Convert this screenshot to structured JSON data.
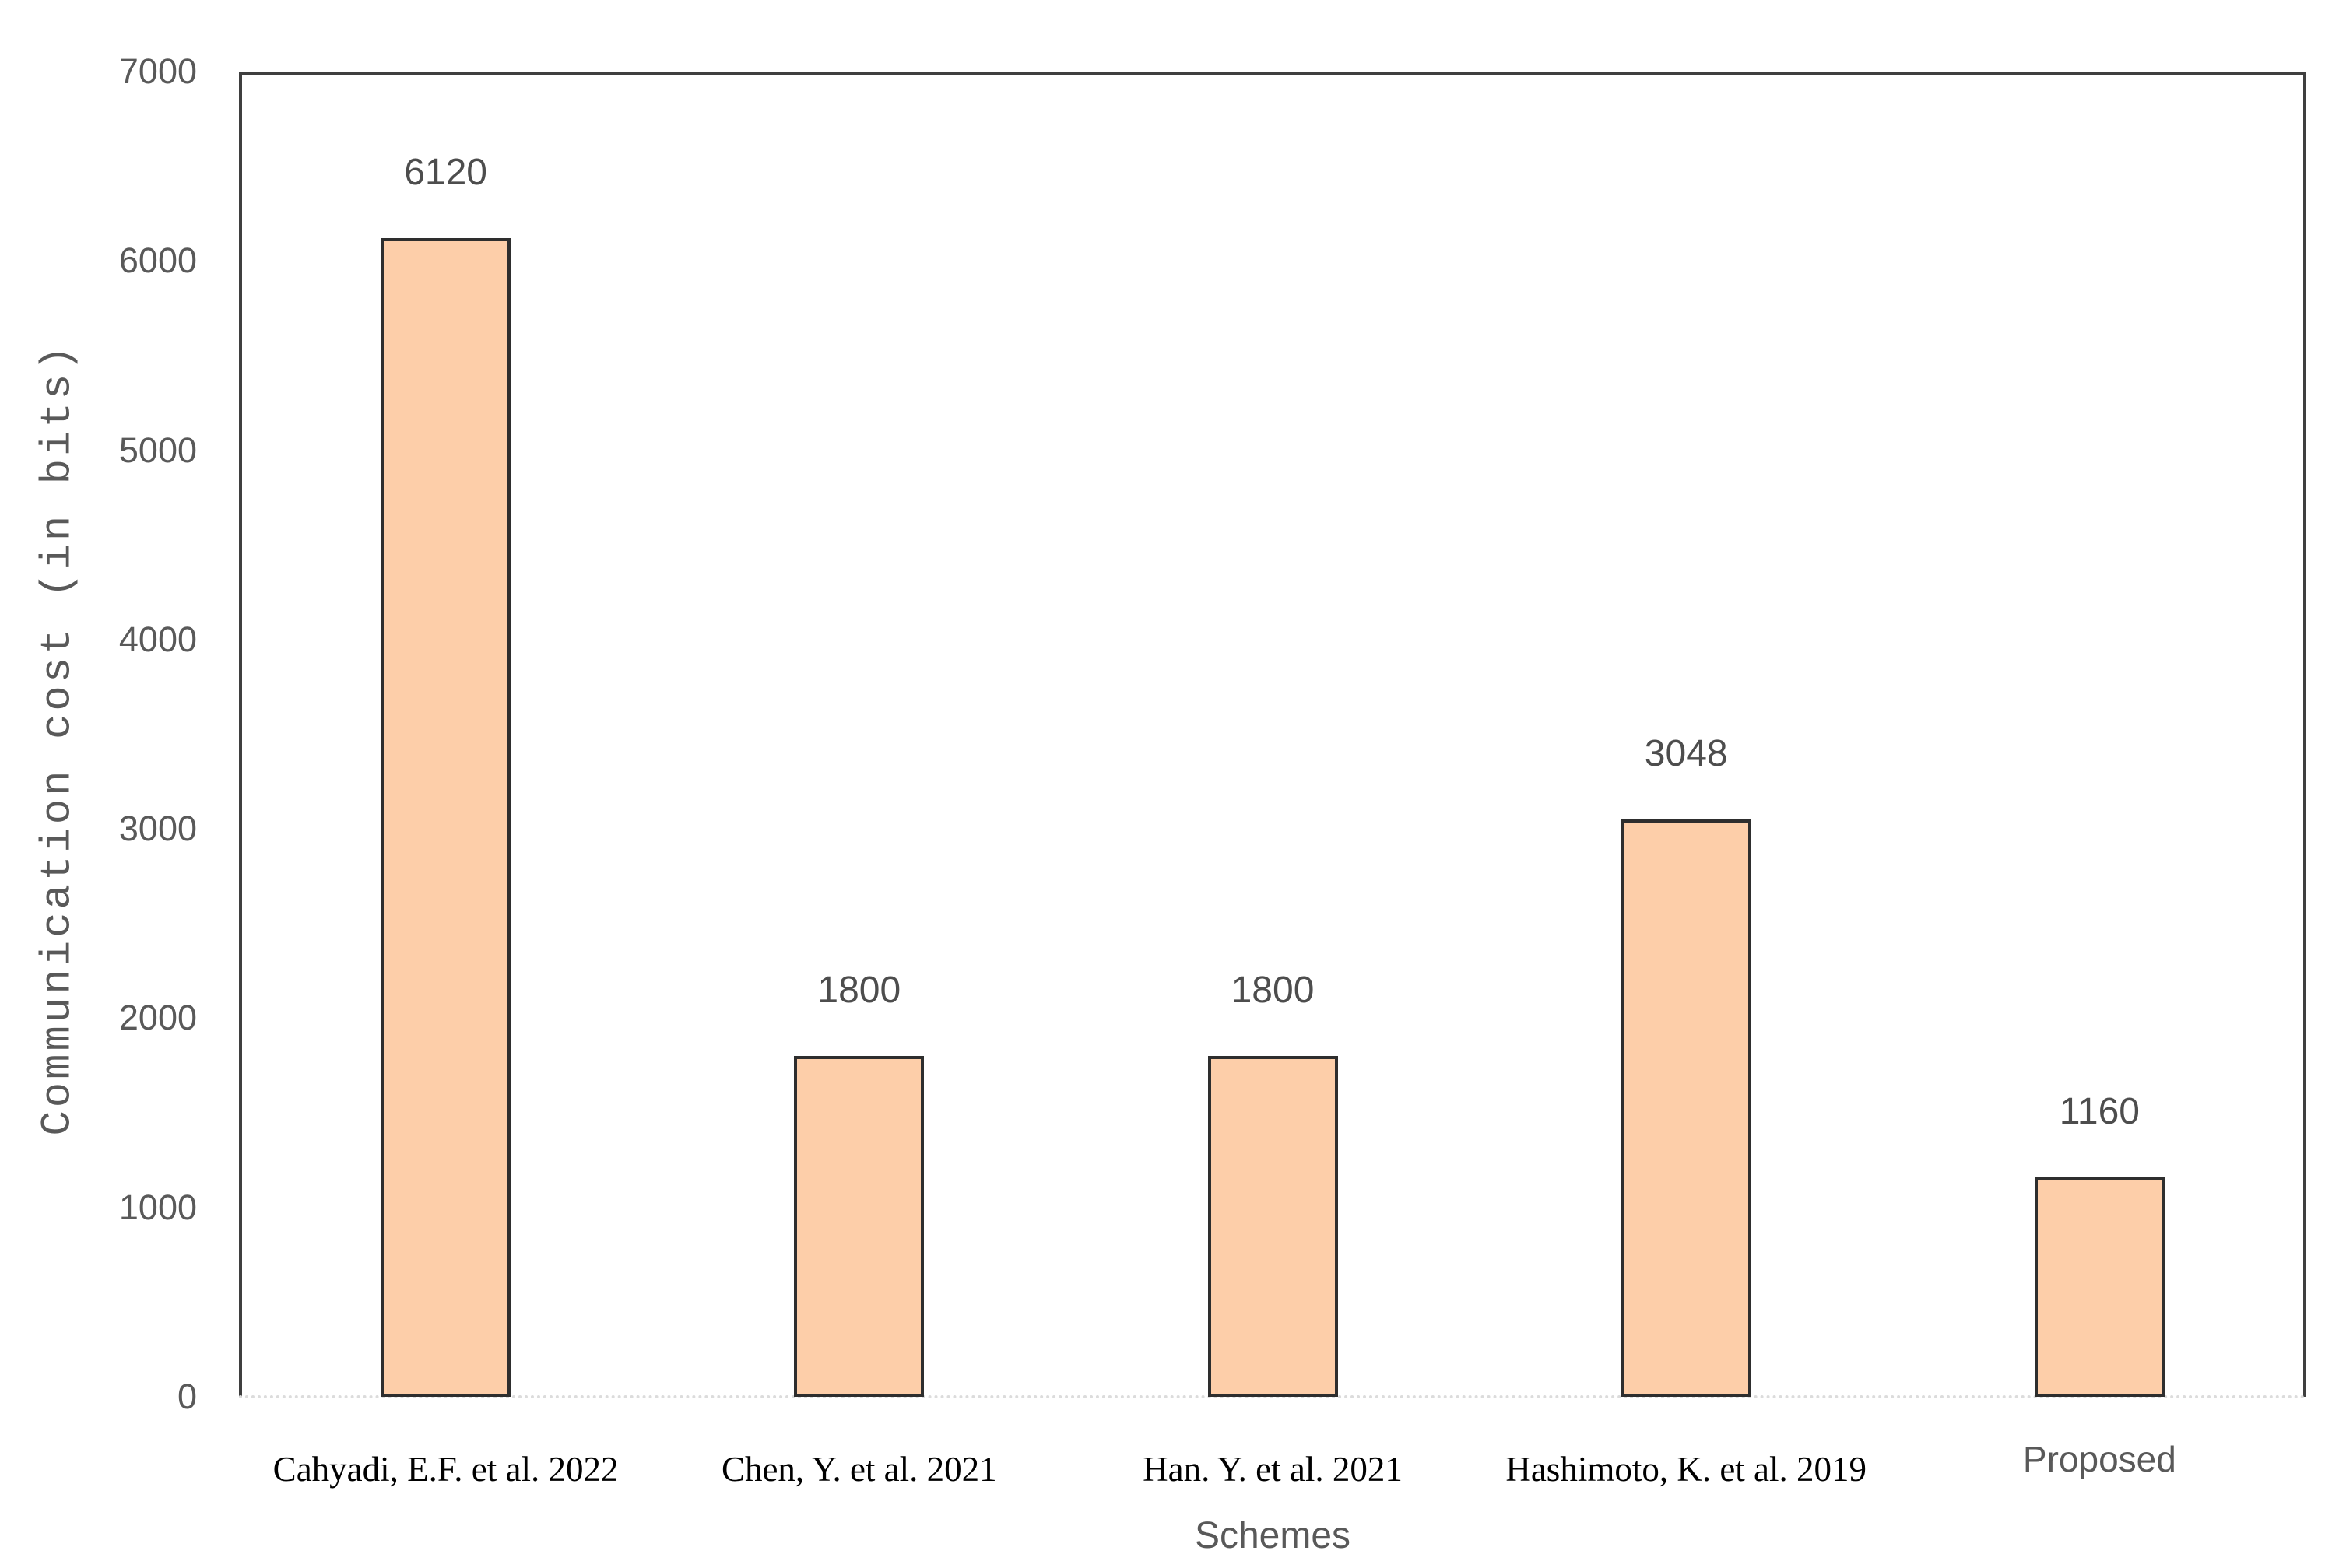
{
  "chart_data": {
    "type": "bar",
    "title": "",
    "xlabel": "Schemes",
    "ylabel": "Communication cost (in bits)",
    "categories": [
      "Cahyadi, E.F. et al. 2022",
      "Chen, Y. et al. 2021",
      "Han. Y. et al. 2021",
      "Hashimoto, K. et al. 2019",
      "Proposed"
    ],
    "values": [
      6120,
      1800,
      1800,
      3048,
      1160
    ],
    "data_labels": [
      "6120",
      "1800",
      "1800",
      "3048",
      "1160"
    ],
    "emphasized_category": "Proposed",
    "ylim": [
      0,
      7000
    ],
    "yticks": [
      0,
      1000,
      2000,
      3000,
      4000,
      5000,
      6000,
      7000
    ],
    "grid": false,
    "legend_position": "none",
    "colors": {
      "bar_fill": "#fdcea9",
      "bar_border": "#2e2e2e",
      "plot_border": "#3f3f3f",
      "baseline": "#dcdcdc",
      "tick_text": "#595959",
      "value_label_text": "#4d4d4d",
      "category_text": "#000000",
      "axis_title_text": "#595959"
    }
  }
}
